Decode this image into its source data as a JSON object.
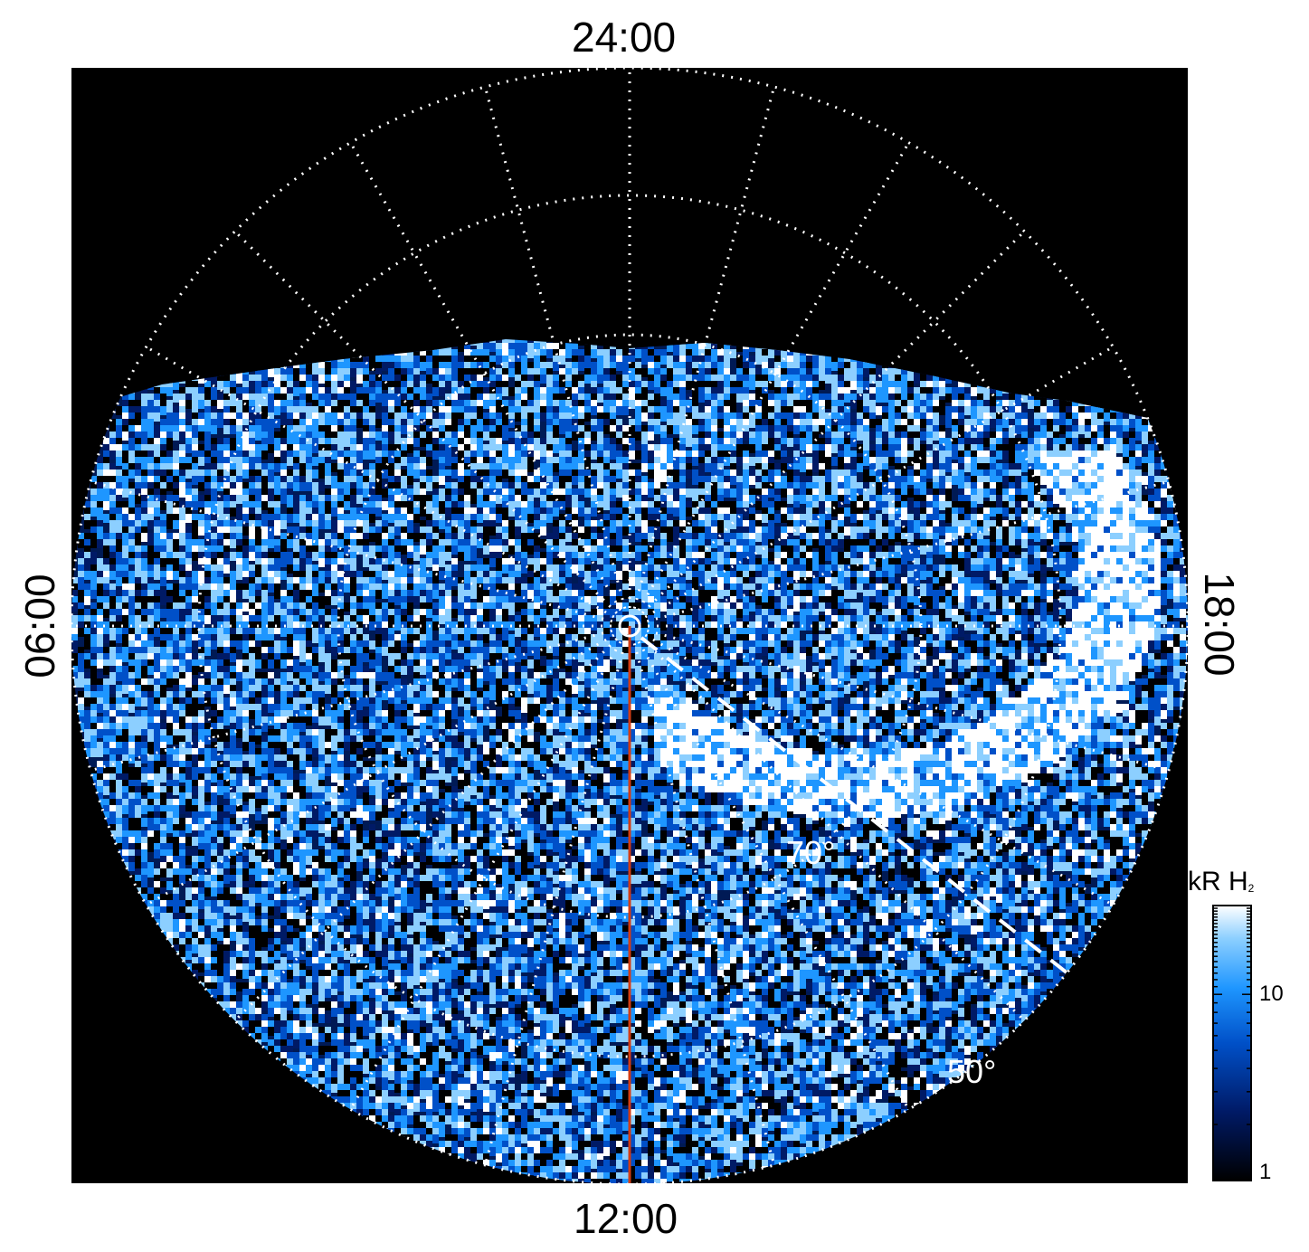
{
  "local_time_labels": {
    "top": "24:00",
    "bottom": "12:00",
    "left": "06:00",
    "right": "18:00"
  },
  "latitude_labels": {
    "inner": "70°",
    "outer": "50°"
  },
  "colorbar": {
    "title": "kR H",
    "title_subscript": "2",
    "ticks": [
      "10",
      "1"
    ],
    "scale": "log",
    "colors": [
      "#000000",
      "#001a66",
      "#0050c8",
      "#1e96ff",
      "#8ccfff",
      "#ffffff"
    ]
  },
  "colors": {
    "background": "#000000",
    "grid": "#ffffff",
    "meridian_line": "#d23c14"
  }
}
